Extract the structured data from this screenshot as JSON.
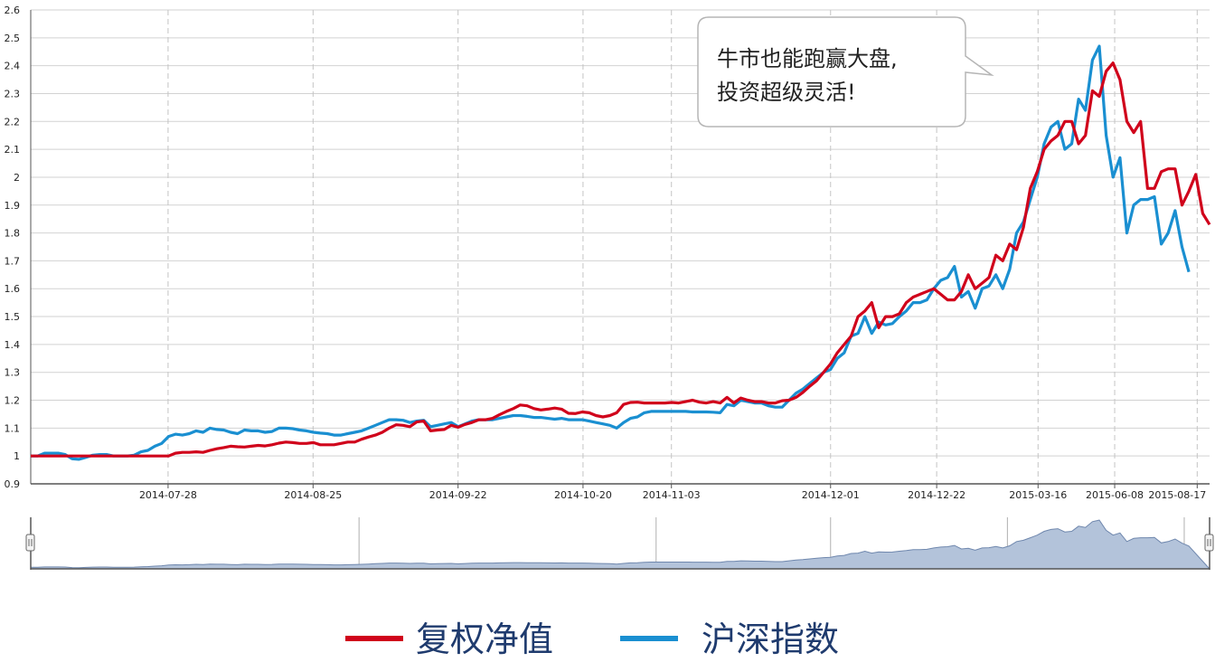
{
  "chart_data": {
    "type": "line",
    "ylim": [
      0.9,
      2.6
    ],
    "yticks": [
      "0.9",
      "1",
      "1.1",
      "1.2",
      "1.3",
      "1.4",
      "1.5",
      "1.6",
      "1.7",
      "1.8",
      "1.9",
      "2",
      "2.1",
      "2.2",
      "2.3",
      "2.4",
      "2.5",
      "2.6"
    ],
    "xticks": [
      "2014-07-28",
      "2014-08-25",
      "2014-09-22",
      "2014-10-20",
      "2014-11-03",
      "2014-12-01",
      "2014-12-22",
      "2015-03-16",
      "2015-06-08",
      "2015-08-17"
    ],
    "grid": true,
    "legend_position": "bottom",
    "annotation": {
      "line1": "牛市也能跑赢大盘,",
      "line2": "投资超级灵活!"
    },
    "series": [
      {
        "name": "复权净值",
        "color": "#d0021b",
        "values": [
          1.0,
          1.0,
          1.0,
          1.0,
          1.0,
          1.0,
          1.0,
          1.0,
          1.0,
          1.0,
          1.0,
          1.0,
          1.0,
          1.0,
          1.0,
          1.0,
          1.0,
          1.0,
          1.0,
          1.0,
          1.0,
          1.01,
          1.013,
          1.013,
          1.015,
          1.013,
          1.02,
          1.026,
          1.03,
          1.035,
          1.033,
          1.032,
          1.035,
          1.038,
          1.036,
          1.04,
          1.046,
          1.05,
          1.048,
          1.045,
          1.045,
          1.048,
          1.04,
          1.04,
          1.04,
          1.045,
          1.05,
          1.05,
          1.06,
          1.068,
          1.075,
          1.085,
          1.1,
          1.112,
          1.11,
          1.105,
          1.122,
          1.125,
          1.09,
          1.093,
          1.095,
          1.11,
          1.103,
          1.113,
          1.12,
          1.13,
          1.13,
          1.135,
          1.148,
          1.16,
          1.17,
          1.183,
          1.18,
          1.17,
          1.165,
          1.168,
          1.172,
          1.168,
          1.153,
          1.152,
          1.158,
          1.155,
          1.145,
          1.14,
          1.145,
          1.155,
          1.185,
          1.192,
          1.193,
          1.19,
          1.19,
          1.19,
          1.19,
          1.192,
          1.19,
          1.195,
          1.2,
          1.193,
          1.19,
          1.195,
          1.19,
          1.21,
          1.19,
          1.208,
          1.2,
          1.195,
          1.195,
          1.19,
          1.19,
          1.198,
          1.2,
          1.21,
          1.228,
          1.25,
          1.27,
          1.3,
          1.33,
          1.37,
          1.4,
          1.43,
          1.5,
          1.52,
          1.55,
          1.46,
          1.5,
          1.5,
          1.51,
          1.55,
          1.57,
          1.58,
          1.59,
          1.6,
          1.58,
          1.56,
          1.56,
          1.59,
          1.65,
          1.6,
          1.62,
          1.64,
          1.72,
          1.7,
          1.76,
          1.74,
          1.82,
          1.96,
          2.02,
          2.1,
          2.13,
          2.15,
          2.2,
          2.2,
          2.12,
          2.15,
          2.31,
          2.29,
          2.38,
          2.41,
          2.35,
          2.2,
          2.16,
          2.2,
          1.96,
          1.96,
          2.02,
          2.03,
          2.03,
          1.9,
          1.95,
          2.01,
          1.87,
          1.83
        ]
      },
      {
        "name": "沪深指数",
        "color": "#1a8fd1",
        "values": [
          1.0,
          1.0,
          1.01,
          1.01,
          1.01,
          1.005,
          0.99,
          0.988,
          0.995,
          1.003,
          1.005,
          1.005,
          1.0,
          1.0,
          1.0,
          1.003,
          1.015,
          1.02,
          1.035,
          1.045,
          1.07,
          1.078,
          1.075,
          1.08,
          1.09,
          1.085,
          1.1,
          1.095,
          1.093,
          1.085,
          1.08,
          1.093,
          1.09,
          1.09,
          1.085,
          1.088,
          1.1,
          1.1,
          1.098,
          1.093,
          1.09,
          1.085,
          1.082,
          1.08,
          1.075,
          1.075,
          1.08,
          1.085,
          1.09,
          1.1,
          1.11,
          1.12,
          1.13,
          1.13,
          1.128,
          1.12,
          1.125,
          1.128,
          1.105,
          1.11,
          1.115,
          1.12,
          1.105,
          1.115,
          1.125,
          1.13,
          1.13,
          1.13,
          1.135,
          1.14,
          1.145,
          1.145,
          1.142,
          1.138,
          1.138,
          1.135,
          1.132,
          1.135,
          1.13,
          1.13,
          1.13,
          1.125,
          1.12,
          1.115,
          1.11,
          1.1,
          1.12,
          1.135,
          1.14,
          1.155,
          1.16,
          1.16,
          1.16,
          1.16,
          1.16,
          1.16,
          1.158,
          1.158,
          1.158,
          1.157,
          1.155,
          1.185,
          1.18,
          1.2,
          1.195,
          1.19,
          1.19,
          1.18,
          1.175,
          1.175,
          1.2,
          1.225,
          1.24,
          1.26,
          1.28,
          1.3,
          1.31,
          1.35,
          1.37,
          1.43,
          1.44,
          1.5,
          1.44,
          1.48,
          1.47,
          1.475,
          1.5,
          1.52,
          1.55,
          1.55,
          1.56,
          1.6,
          1.63,
          1.64,
          1.68,
          1.57,
          1.59,
          1.53,
          1.6,
          1.61,
          1.65,
          1.6,
          1.67,
          1.8,
          1.84,
          1.92,
          2.0,
          2.12,
          2.18,
          2.2,
          2.1,
          2.12,
          2.28,
          2.24,
          2.42,
          2.47,
          2.15,
          2.0,
          2.07,
          1.8,
          1.9,
          1.92,
          1.92,
          1.93,
          1.76,
          1.8,
          1.88,
          1.75,
          1.66
        ]
      }
    ]
  },
  "navigator": {
    "fill": "#b3c3da",
    "stroke": "#6f87ad"
  }
}
